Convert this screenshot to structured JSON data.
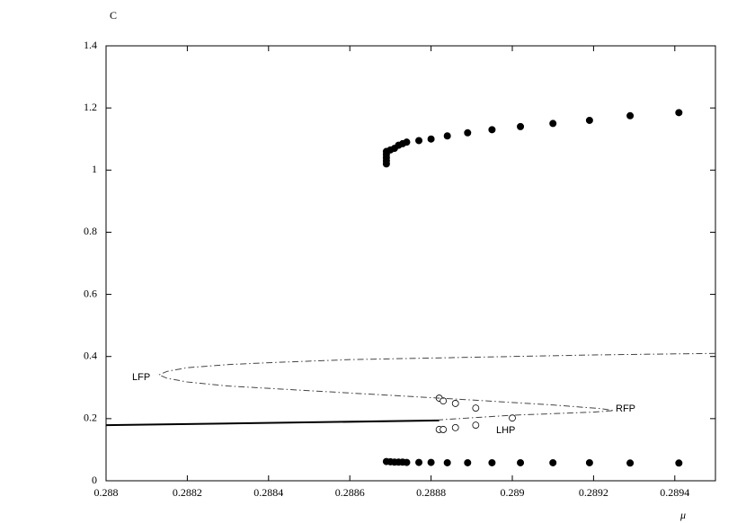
{
  "chart_data": {
    "type": "line",
    "y_label": "C",
    "x_label": "μ",
    "xlim": [
      0.288,
      0.2895
    ],
    "ylim": [
      0,
      1.4
    ],
    "xticks": [
      0.288,
      0.2882,
      0.2884,
      0.2886,
      0.2888,
      0.289,
      0.2892,
      0.2894
    ],
    "yticks": [
      0,
      0.2,
      0.4,
      0.6,
      0.8,
      1,
      1.2,
      1.4
    ],
    "grid": false,
    "annotations": [
      "LFP",
      "RFP",
      "LHP"
    ],
    "series": [
      {
        "color": "#000000",
        "marker": "filled",
        "line": "none",
        "x": [
          0.28869,
          0.28869,
          0.28869,
          0.28869,
          0.28869,
          0.2887,
          0.28871,
          0.28872,
          0.28873,
          0.28874,
          0.28877,
          0.2888,
          0.28884,
          0.28889,
          0.28895,
          0.28902,
          0.2891,
          0.28919,
          0.28929,
          0.28941
        ],
        "values": [
          1.02,
          1.03,
          1.04,
          1.05,
          1.06,
          1.065,
          1.07,
          1.08,
          1.085,
          1.09,
          1.095,
          1.1,
          1.11,
          1.12,
          1.13,
          1.14,
          1.15,
          1.16,
          1.175,
          1.185
        ]
      },
      {
        "color": "#000000",
        "marker": "filled",
        "line": "none",
        "x": [
          0.28869,
          0.2887,
          0.28871,
          0.28872,
          0.28873,
          0.28874,
          0.28877,
          0.2888,
          0.28884,
          0.28889,
          0.28895,
          0.28902,
          0.2891,
          0.28919,
          0.28929,
          0.28941
        ],
        "values": [
          0.062,
          0.061,
          0.06,
          0.06,
          0.06,
          0.059,
          0.059,
          0.059,
          0.058,
          0.058,
          0.058,
          0.058,
          0.058,
          0.058,
          0.057,
          0.057
        ]
      },
      {
        "color": "#000000",
        "marker": "open",
        "line": "none",
        "x": [
          0.28882,
          0.28883,
          0.28886,
          0.28891,
          0.289,
          0.28882,
          0.28883,
          0.28886,
          0.28891
        ],
        "values": [
          0.266,
          0.257,
          0.249,
          0.234,
          0.202,
          0.165,
          0.165,
          0.171,
          0.179
        ]
      },
      {
        "color": "#000000",
        "marker": "none",
        "line": "solid",
        "x": [
          0.288,
          0.28882
        ],
        "values": [
          0.179,
          0.194
        ]
      },
      {
        "color": "#444444",
        "marker": "none",
        "line": "dashdot",
        "x": [
          0.2895,
          0.2892,
          0.289,
          0.2888,
          0.2886,
          0.2884,
          0.2883,
          0.2882,
          0.28815,
          0.28813,
          0.28815,
          0.2882,
          0.2883,
          0.2885,
          0.2887,
          0.2889,
          0.2891,
          0.28922,
          0.28925,
          0.2892,
          0.289,
          0.28882
        ],
        "values": [
          0.41,
          0.405,
          0.4,
          0.395,
          0.39,
          0.38,
          0.374,
          0.364,
          0.352,
          0.341,
          0.33,
          0.318,
          0.305,
          0.29,
          0.275,
          0.26,
          0.244,
          0.232,
          0.226,
          0.221,
          0.211,
          0.196
        ]
      }
    ]
  }
}
